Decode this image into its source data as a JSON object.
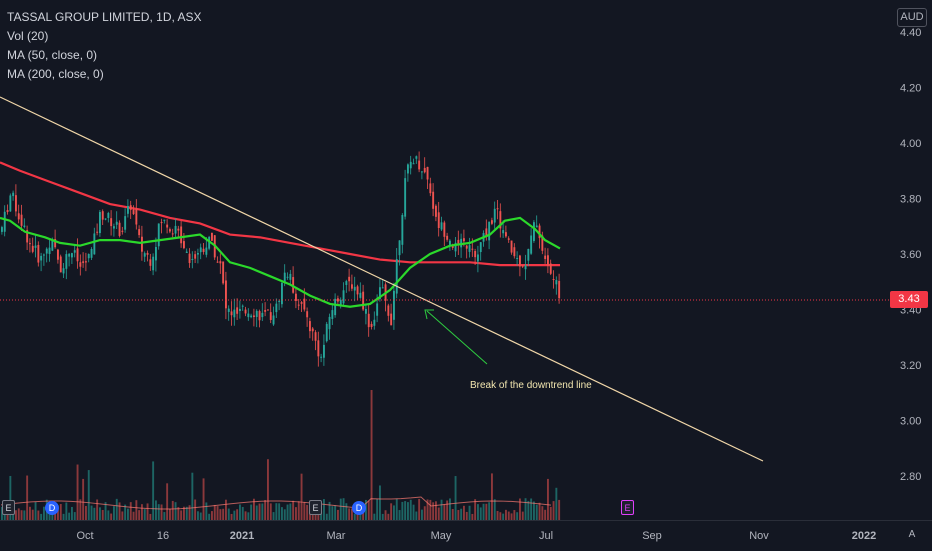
{
  "legend": {
    "symbol": "TASSAL GROUP LIMITED, 1D, ASX",
    "vol": "Vol (20)",
    "ma50": "MA (50, close, 0)",
    "ma200": "MA (200, close, 0)"
  },
  "currency": "AUD",
  "last_price": "3.43",
  "annotation": "Break of the downtrend line",
  "bottom_right_button": "A",
  "colors": {
    "background": "#131722",
    "up": "#26a69a",
    "down": "#ef5350",
    "ma50": "#2bd92b",
    "ma200": "#f23645",
    "trendline": "#f0d6a8",
    "arrow": "#2ecc40",
    "price_line": "#f23645"
  },
  "event_markers": [
    {
      "kind": "E",
      "label": "E"
    },
    {
      "kind": "D",
      "label": "D"
    },
    {
      "kind": "E",
      "label": "E"
    },
    {
      "kind": "D",
      "label": "D"
    },
    {
      "kind": "E-future",
      "label": "E"
    }
  ],
  "chart_data": {
    "type": "line",
    "title": "TASSAL GROUP LIMITED, 1D, ASX",
    "y_ticks": [
      "4.40",
      "4.20",
      "4.00",
      "3.80",
      "3.60",
      "3.40",
      "3.20",
      "3.00",
      "2.80"
    ],
    "x_ticks": [
      "Oct",
      "16",
      "2021",
      "Mar",
      "May",
      "Jul",
      "Sep",
      "Nov",
      "2022"
    ],
    "ylim": [
      2.68,
      4.45
    ],
    "series": [
      {
        "name": "MA (50, close, 0)",
        "values": [
          [
            0,
            3.73
          ],
          [
            10,
            3.72
          ],
          [
            25,
            3.68
          ],
          [
            45,
            3.66
          ],
          [
            60,
            3.64
          ],
          [
            80,
            3.63
          ],
          [
            100,
            3.65
          ],
          [
            120,
            3.65
          ],
          [
            140,
            3.64
          ],
          [
            160,
            3.65
          ],
          [
            180,
            3.66
          ],
          [
            200,
            3.67
          ],
          [
            215,
            3.63
          ],
          [
            230,
            3.57
          ],
          [
            250,
            3.55
          ],
          [
            270,
            3.52
          ],
          [
            290,
            3.49
          ],
          [
            310,
            3.45
          ],
          [
            330,
            3.42
          ],
          [
            350,
            3.41
          ],
          [
            370,
            3.42
          ],
          [
            390,
            3.47
          ],
          [
            410,
            3.55
          ],
          [
            430,
            3.6
          ],
          [
            450,
            3.63
          ],
          [
            470,
            3.64
          ],
          [
            490,
            3.67
          ],
          [
            505,
            3.72
          ],
          [
            520,
            3.73
          ],
          [
            535,
            3.69
          ],
          [
            545,
            3.65
          ],
          [
            560,
            3.62
          ]
        ]
      },
      {
        "name": "MA (200, close, 0)",
        "values": [
          [
            0,
            3.93
          ],
          [
            20,
            3.9
          ],
          [
            50,
            3.86
          ],
          [
            80,
            3.82
          ],
          [
            110,
            3.78
          ],
          [
            140,
            3.76
          ],
          [
            170,
            3.73
          ],
          [
            200,
            3.71
          ],
          [
            230,
            3.67
          ],
          [
            260,
            3.66
          ],
          [
            290,
            3.64
          ],
          [
            320,
            3.62
          ],
          [
            350,
            3.6
          ],
          [
            380,
            3.58
          ],
          [
            410,
            3.57
          ],
          [
            440,
            3.57
          ],
          [
            470,
            3.57
          ],
          [
            500,
            3.56
          ],
          [
            530,
            3.56
          ],
          [
            560,
            3.56
          ]
        ]
      },
      {
        "name": "Price",
        "values": [
          [
            0,
            3.68
          ],
          [
            10,
            3.82
          ],
          [
            20,
            3.72
          ],
          [
            30,
            3.63
          ],
          [
            40,
            3.58
          ],
          [
            50,
            3.65
          ],
          [
            60,
            3.55
          ],
          [
            70,
            3.62
          ],
          [
            80,
            3.55
          ],
          [
            90,
            3.6
          ],
          [
            100,
            3.75
          ],
          [
            110,
            3.72
          ],
          [
            120,
            3.68
          ],
          [
            130,
            3.78
          ],
          [
            140,
            3.62
          ],
          [
            150,
            3.58
          ],
          [
            160,
            3.72
          ],
          [
            170,
            3.7
          ],
          [
            180,
            3.66
          ],
          [
            190,
            3.58
          ],
          [
            200,
            3.62
          ],
          [
            210,
            3.65
          ],
          [
            220,
            3.55
          ],
          [
            225,
            3.4
          ],
          [
            235,
            3.38
          ],
          [
            250,
            3.4
          ],
          [
            265,
            3.37
          ],
          [
            275,
            3.4
          ],
          [
            285,
            3.55
          ],
          [
            295,
            3.45
          ],
          [
            305,
            3.38
          ],
          [
            315,
            3.28
          ],
          [
            320,
            3.22
          ],
          [
            330,
            3.4
          ],
          [
            340,
            3.46
          ],
          [
            350,
            3.5
          ],
          [
            360,
            3.45
          ],
          [
            370,
            3.33
          ],
          [
            380,
            3.48
          ],
          [
            390,
            3.36
          ],
          [
            395,
            3.55
          ],
          [
            400,
            3.72
          ],
          [
            405,
            3.88
          ],
          [
            412,
            3.95
          ],
          [
            420,
            3.92
          ],
          [
            428,
            3.86
          ],
          [
            435,
            3.72
          ],
          [
            445,
            3.68
          ],
          [
            455,
            3.62
          ],
          [
            465,
            3.64
          ],
          [
            475,
            3.58
          ],
          [
            485,
            3.68
          ],
          [
            495,
            3.76
          ],
          [
            505,
            3.65
          ],
          [
            515,
            3.58
          ],
          [
            525,
            3.57
          ],
          [
            535,
            3.73
          ],
          [
            545,
            3.56
          ],
          [
            552,
            3.52
          ],
          [
            560,
            3.43
          ]
        ]
      }
    ],
    "annotations": [
      "Break of the downtrend line"
    ],
    "legend": "top-left",
    "grid": false
  }
}
